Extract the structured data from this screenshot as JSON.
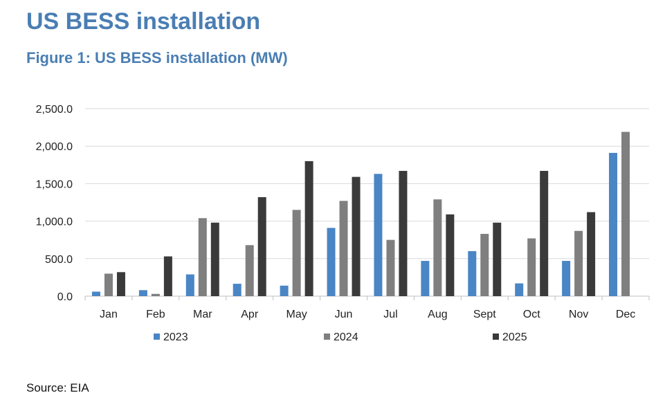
{
  "header": {
    "title": "US BESS installation",
    "figure_title": "Figure 1: US BESS installation (MW)"
  },
  "footer": {
    "source": "Source: EIA"
  },
  "chart_data": {
    "type": "bar",
    "title": "",
    "xlabel": "",
    "ylabel": "",
    "categories": [
      "Jan",
      "Feb",
      "Mar",
      "Apr",
      "May",
      "Jun",
      "Jul",
      "Aug",
      "Sept",
      "Oct",
      "Nov",
      "Dec"
    ],
    "series": [
      {
        "name": "2023",
        "color": "#4a86c5",
        "values": [
          60,
          80,
          290,
          165,
          140,
          910,
          1630,
          470,
          600,
          170,
          470,
          1910
        ]
      },
      {
        "name": "2024",
        "color": "#7f7f7f",
        "values": [
          300,
          30,
          1040,
          680,
          1150,
          1270,
          750,
          1290,
          830,
          770,
          870,
          2190
        ]
      },
      {
        "name": "2025",
        "color": "#3a3a3a",
        "values": [
          320,
          530,
          980,
          1320,
          1800,
          1590,
          1670,
          1090,
          980,
          1670,
          1120,
          null
        ]
      }
    ],
    "ylim": [
      0,
      2500
    ],
    "yticks": [
      "0.0",
      "500.0",
      "1,000.0",
      "1,500.0",
      "2,000.0",
      "2,500.0"
    ],
    "grid": true,
    "legend_position": "bottom"
  }
}
